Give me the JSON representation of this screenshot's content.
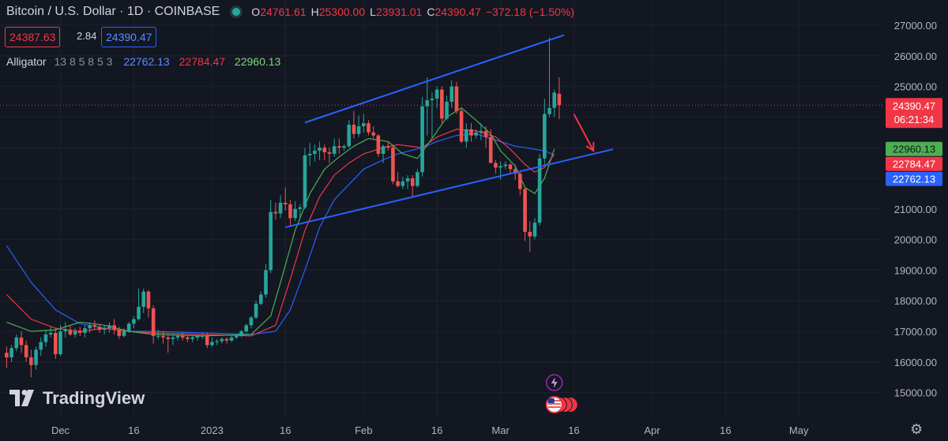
{
  "header": {
    "symbol": "Bitcoin / U.S. Dollar · 1D · COINBASE",
    "open_label": "O",
    "open": "24761.61",
    "high_label": "H",
    "high": "25300.00",
    "low_label": "L",
    "low": "23931.01",
    "close_label": "C",
    "close": "24390.47",
    "change": "−372.18 (−1.50%)",
    "bid": "24387.63",
    "spread": "2.84",
    "ask": "24390.47",
    "status_color": "#26a69a"
  },
  "indicator": {
    "name": "Alligator",
    "params": "13 8 5 8 5 3",
    "jaw": "22762.13",
    "teeth": "22784.47",
    "lips": "22960.13"
  },
  "branding": {
    "logo_text": "TradingView"
  },
  "icons": {
    "settings": "gear-icon",
    "events": [
      "lightning-icon",
      "us-flag-icon"
    ]
  },
  "colors": {
    "up": "#26a69a",
    "down": "#ef5350",
    "jaw": "#2962ff",
    "teeth": "#f23645",
    "lips": "#4caf50",
    "channel": "#2962ff",
    "arrow": "#f23645"
  },
  "chart_data": {
    "type": "candlestick",
    "ylim": [
      14700,
      27500
    ],
    "yticks": [
      "15000.00",
      "16000.00",
      "17000.00",
      "18000.00",
      "19000.00",
      "20000.00",
      "21000.00",
      "22000.00",
      "23000.00",
      "24000.00",
      "25000.00",
      "26000.00",
      "27000.00"
    ],
    "xticks": [
      {
        "label": "Dec",
        "date": "2022-12-01"
      },
      {
        "label": "16",
        "date": "2022-12-16"
      },
      {
        "label": "2023",
        "date": "2023-01-01"
      },
      {
        "label": "16",
        "date": "2023-01-16"
      },
      {
        "label": "Feb",
        "date": "2023-02-01"
      },
      {
        "label": "16",
        "date": "2023-02-16"
      },
      {
        "label": "Mar",
        "date": "2023-03-01"
      },
      {
        "label": "16",
        "date": "2023-03-16"
      },
      {
        "label": "Apr",
        "date": "2023-04-01"
      },
      {
        "label": "16",
        "date": "2023-04-16"
      },
      {
        "label": "May",
        "date": "2023-05-01"
      }
    ],
    "price_labels": {
      "last": {
        "value": "24390.47",
        "countdown": "06:21:34",
        "color": "#f23645"
      },
      "lips": {
        "value": "22960.13",
        "color": "#4caf50"
      },
      "teeth": {
        "value": "22784.47",
        "color": "#f23645"
      },
      "jaw": {
        "value": "22762.13",
        "color": "#2962ff"
      }
    },
    "candles_start_date": "2022-11-20",
    "candles": [
      [
        16300,
        16500,
        15800,
        16150
      ],
      [
        16150,
        16550,
        16000,
        16450
      ],
      [
        16450,
        16900,
        16350,
        16800
      ],
      [
        16800,
        17000,
        16300,
        16550
      ],
      [
        16550,
        16700,
        16000,
        16150
      ],
      [
        16150,
        16400,
        15500,
        15900
      ],
      [
        15900,
        16500,
        15750,
        16400
      ],
      [
        16400,
        16800,
        16200,
        16650
      ],
      [
        16650,
        17050,
        16500,
        16900
      ],
      [
        16900,
        17150,
        16800,
        16950
      ],
      [
        16950,
        17100,
        16100,
        16250
      ],
      [
        16250,
        17200,
        16200,
        17000
      ],
      [
        17000,
        17300,
        16800,
        17050
      ],
      [
        17050,
        17200,
        16850,
        16900
      ],
      [
        16900,
        17100,
        16800,
        17000
      ],
      [
        17000,
        17150,
        16850,
        16950
      ],
      [
        16950,
        17200,
        16800,
        17100
      ],
      [
        17100,
        17300,
        16950,
        17200
      ],
      [
        17200,
        17350,
        17050,
        17150
      ],
      [
        17150,
        17250,
        16950,
        17050
      ],
      [
        17050,
        17200,
        16900,
        17100
      ],
      [
        17100,
        17300,
        16950,
        17200
      ],
      [
        17200,
        17400,
        16900,
        17050
      ],
      [
        17050,
        17150,
        16750,
        16850
      ],
      [
        16850,
        17100,
        16800,
        17000
      ],
      [
        17000,
        17300,
        16950,
        17250
      ],
      [
        17250,
        17500,
        17100,
        17400
      ],
      [
        17400,
        18400,
        17350,
        17800
      ],
      [
        17800,
        18400,
        17600,
        18300
      ],
      [
        18300,
        18350,
        17450,
        17750
      ],
      [
        17750,
        17850,
        16600,
        16850
      ],
      [
        16850,
        17050,
        16750,
        16850
      ],
      [
        16850,
        17000,
        16600,
        16800
      ],
      [
        16800,
        16900,
        16300,
        16750
      ],
      [
        16750,
        16900,
        16550,
        16800
      ],
      [
        16800,
        16900,
        16700,
        16850
      ],
      [
        16850,
        16950,
        16700,
        16800
      ],
      [
        16800,
        16850,
        16650,
        16750
      ],
      [
        16750,
        16850,
        16650,
        16800
      ],
      [
        16800,
        16900,
        16700,
        16850
      ],
      [
        16850,
        16950,
        16750,
        16850
      ],
      [
        16850,
        16950,
        16450,
        16550
      ],
      [
        16550,
        16800,
        16500,
        16650
      ],
      [
        16650,
        16750,
        16550,
        16680
      ],
      [
        16680,
        16800,
        16600,
        16750
      ],
      [
        16750,
        16800,
        16600,
        16700
      ],
      [
        16700,
        16850,
        16650,
        16800
      ],
      [
        16800,
        16900,
        16750,
        16850
      ],
      [
        16850,
        17050,
        16800,
        17000
      ],
      [
        17000,
        17250,
        16950,
        17200
      ],
      [
        17200,
        17500,
        17100,
        17450
      ],
      [
        17450,
        18000,
        17400,
        17900
      ],
      [
        17900,
        18300,
        17850,
        18200
      ],
      [
        18200,
        19200,
        18100,
        19000
      ],
      [
        19000,
        21300,
        18900,
        20900
      ],
      [
        20900,
        21200,
        20650,
        20850
      ],
      [
        20850,
        21450,
        20700,
        21200
      ],
      [
        21200,
        21700,
        20950,
        21150
      ],
      [
        21150,
        21300,
        20450,
        20700
      ],
      [
        20700,
        21250,
        20600,
        21000
      ],
      [
        21000,
        21150,
        20700,
        21050
      ],
      [
        21050,
        23000,
        21000,
        22750
      ],
      [
        22750,
        23150,
        22400,
        22800
      ],
      [
        22800,
        23100,
        22550,
        22900
      ],
      [
        22900,
        23200,
        22600,
        23000
      ],
      [
        23000,
        23100,
        22600,
        22850
      ],
      [
        22850,
        23000,
        22500,
        22800
      ],
      [
        22800,
        23300,
        22700,
        23050
      ],
      [
        23050,
        23300,
        22800,
        23000
      ],
      [
        23000,
        23100,
        22900,
        23050
      ],
      [
        23050,
        23900,
        23000,
        23750
      ],
      [
        23750,
        24200,
        23300,
        23450
      ],
      [
        23450,
        24050,
        23350,
        23700
      ],
      [
        23700,
        24100,
        23500,
        23800
      ],
      [
        23800,
        23900,
        23400,
        23500
      ],
      [
        23500,
        23700,
        23300,
        23400
      ],
      [
        23400,
        23450,
        22700,
        22800
      ],
      [
        22800,
        23100,
        22500,
        23050
      ],
      [
        23050,
        23200,
        22900,
        23000
      ],
      [
        23000,
        23100,
        21800,
        21900
      ],
      [
        21900,
        22200,
        21700,
        21750
      ],
      [
        21750,
        22050,
        21650,
        21900
      ],
      [
        21900,
        22100,
        21650,
        22000
      ],
      [
        22000,
        22100,
        21400,
        21750
      ],
      [
        21750,
        22300,
        21700,
        22200
      ],
      [
        22200,
        24650,
        22050,
        24350
      ],
      [
        24350,
        25300,
        23400,
        24550
      ],
      [
        24550,
        24800,
        23300,
        24600
      ],
      [
        24600,
        25000,
        24300,
        24900
      ],
      [
        24900,
        25000,
        23800,
        23950
      ],
      [
        23950,
        24700,
        23900,
        24500
      ],
      [
        24500,
        25200,
        24300,
        25000
      ],
      [
        25000,
        25150,
        24100,
        24200
      ],
      [
        24200,
        24300,
        23150,
        23200
      ],
      [
        23200,
        23800,
        23000,
        23600
      ],
      [
        23600,
        23800,
        23200,
        23400
      ],
      [
        23400,
        23600,
        23300,
        23500
      ],
      [
        23500,
        23800,
        23250,
        23550
      ],
      [
        23550,
        23700,
        23000,
        23350
      ],
      [
        23350,
        23600,
        22500,
        22500
      ],
      [
        22500,
        22600,
        22150,
        22350
      ],
      [
        22350,
        22550,
        21950,
        22400
      ],
      [
        22400,
        22550,
        22300,
        22450
      ],
      [
        22450,
        22500,
        22150,
        22300
      ],
      [
        22300,
        22450,
        21950,
        22150
      ],
      [
        22150,
        22200,
        21450,
        21650
      ],
      [
        21650,
        21700,
        19950,
        20250
      ],
      [
        20250,
        20600,
        19600,
        20100
      ],
      [
        20100,
        20700,
        20000,
        20550
      ],
      [
        20550,
        22800,
        20450,
        22650
      ],
      [
        22650,
        24600,
        22400,
        24100
      ],
      [
        24100,
        26600,
        24000,
        24300
      ],
      [
        24300,
        24900,
        24000,
        24800
      ],
      [
        24761.61,
        25300,
        23931.01,
        24390.47
      ]
    ],
    "lines": {
      "jaw": [
        [
          0,
          19800
        ],
        [
          5,
          18600
        ],
        [
          10,
          17700
        ],
        [
          15,
          17250
        ],
        [
          20,
          17100
        ],
        [
          25,
          17000
        ],
        [
          30,
          17000
        ],
        [
          40,
          16950
        ],
        [
          50,
          16900
        ],
        [
          55,
          17000
        ],
        [
          58,
          17700
        ],
        [
          61,
          19000
        ],
        [
          64,
          20400
        ],
        [
          67,
          21300
        ],
        [
          70,
          21800
        ],
        [
          73,
          22300
        ],
        [
          77,
          22600
        ],
        [
          80,
          22800
        ],
        [
          85,
          23000
        ],
        [
          88,
          23200
        ],
        [
          92,
          23400
        ],
        [
          96,
          23450
        ],
        [
          100,
          23250
        ],
        [
          104,
          23050
        ],
        [
          106,
          23000
        ],
        [
          110,
          22900
        ],
        [
          112,
          22762
        ]
      ],
      "teeth": [
        [
          0,
          18200
        ],
        [
          5,
          17400
        ],
        [
          10,
          17100
        ],
        [
          15,
          17000
        ],
        [
          20,
          17100
        ],
        [
          25,
          17000
        ],
        [
          30,
          16950
        ],
        [
          40,
          16900
        ],
        [
          50,
          16850
        ],
        [
          55,
          17200
        ],
        [
          58,
          18700
        ],
        [
          61,
          20300
        ],
        [
          64,
          21400
        ],
        [
          67,
          22100
        ],
        [
          70,
          22500
        ],
        [
          73,
          22800
        ],
        [
          77,
          23000
        ],
        [
          80,
          23100
        ],
        [
          85,
          23000
        ],
        [
          88,
          23350
        ],
        [
          92,
          23600
        ],
        [
          96,
          23550
        ],
        [
          100,
          23350
        ],
        [
          103,
          22950
        ],
        [
          106,
          22450
        ],
        [
          108,
          22200
        ],
        [
          110,
          22350
        ],
        [
          112,
          22784
        ]
      ],
      "lips": [
        [
          0,
          17300
        ],
        [
          5,
          17000
        ],
        [
          10,
          17050
        ],
        [
          15,
          17300
        ],
        [
          20,
          17200
        ],
        [
          25,
          17000
        ],
        [
          30,
          16900
        ],
        [
          40,
          16850
        ],
        [
          50,
          16900
        ],
        [
          54,
          17500
        ],
        [
          56,
          18600
        ],
        [
          59,
          20300
        ],
        [
          62,
          21500
        ],
        [
          65,
          22300
        ],
        [
          68,
          22700
        ],
        [
          71,
          23050
        ],
        [
          74,
          23300
        ],
        [
          78,
          23200
        ],
        [
          81,
          22800
        ],
        [
          84,
          22650
        ],
        [
          87,
          23300
        ],
        [
          90,
          24000
        ],
        [
          93,
          24300
        ],
        [
          96,
          23900
        ],
        [
          99,
          23450
        ],
        [
          101,
          22900
        ],
        [
          104,
          22400
        ],
        [
          106,
          21700
        ],
        [
          108,
          21500
        ],
        [
          110,
          22000
        ],
        [
          112,
          22960
        ]
      ]
    },
    "annotations": [
      {
        "type": "trendline",
        "from": {
          "date": "2023-01-20",
          "value": 23820
        },
        "to": {
          "date": "2023-03-14",
          "value": 26680
        }
      },
      {
        "type": "trendline",
        "from": {
          "date": "2023-01-16",
          "value": 20400
        },
        "to": {
          "date": "2023-03-24",
          "value": 22950
        }
      },
      {
        "type": "arrow",
        "from": {
          "date": "2023-03-16",
          "value": 24100
        },
        "to": {
          "date": "2023-03-20",
          "value": 22900
        }
      }
    ]
  }
}
